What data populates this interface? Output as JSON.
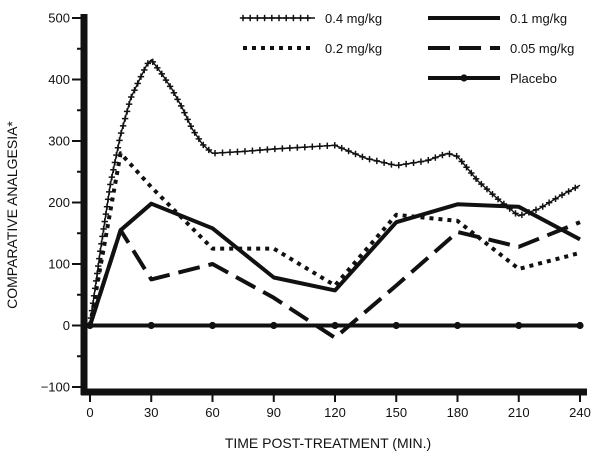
{
  "chart_data": {
    "type": "line",
    "title": "",
    "xlabel": "TIME POST-TREATMENT (MIN.)",
    "ylabel": "COMPARATIVE ANALGESIA*",
    "xlim": [
      0,
      240
    ],
    "ylim": [
      -100,
      500
    ],
    "xticks": [
      0,
      30,
      60,
      90,
      120,
      150,
      180,
      210,
      240
    ],
    "yticks": [
      -100,
      0,
      100,
      200,
      300,
      400,
      500
    ],
    "grid": false,
    "legend_position": "top-right",
    "series": [
      {
        "name": "0.4 mg/kg",
        "style": "line-with-plus-markers",
        "color": "#111111",
        "points": [
          [
            0,
            0
          ],
          [
            5,
            120
          ],
          [
            10,
            230
          ],
          [
            15,
            310
          ],
          [
            20,
            370
          ],
          [
            25,
            405
          ],
          [
            28,
            425
          ],
          [
            30,
            432
          ],
          [
            35,
            410
          ],
          [
            40,
            385
          ],
          [
            45,
            355
          ],
          [
            50,
            320
          ],
          [
            55,
            295
          ],
          [
            60,
            280
          ],
          [
            75,
            283
          ],
          [
            90,
            287
          ],
          [
            105,
            290
          ],
          [
            120,
            293
          ],
          [
            135,
            272
          ],
          [
            150,
            260
          ],
          [
            165,
            268
          ],
          [
            175,
            280
          ],
          [
            180,
            275
          ],
          [
            190,
            235
          ],
          [
            200,
            205
          ],
          [
            210,
            178
          ],
          [
            220,
            190
          ],
          [
            230,
            210
          ],
          [
            240,
            228
          ]
        ]
      },
      {
        "name": "0.2 mg/kg",
        "style": "dotted",
        "color": "#111111",
        "points": [
          [
            0,
            0
          ],
          [
            15,
            280
          ],
          [
            30,
            225
          ],
          [
            60,
            125
          ],
          [
            90,
            125
          ],
          [
            120,
            65
          ],
          [
            150,
            180
          ],
          [
            180,
            170
          ],
          [
            210,
            92
          ],
          [
            240,
            118
          ]
        ]
      },
      {
        "name": "0.1 mg/kg",
        "style": "solid",
        "color": "#111111",
        "points": [
          [
            0,
            0
          ],
          [
            15,
            155
          ],
          [
            30,
            198
          ],
          [
            60,
            158
          ],
          [
            90,
            78
          ],
          [
            120,
            57
          ],
          [
            150,
            168
          ],
          [
            180,
            197
          ],
          [
            210,
            193
          ],
          [
            240,
            140
          ]
        ]
      },
      {
        "name": "0.05 mg/kg",
        "style": "long-dash",
        "color": "#111111",
        "points": [
          [
            0,
            0
          ],
          [
            15,
            155
          ],
          [
            30,
            75
          ],
          [
            60,
            100
          ],
          [
            90,
            45
          ],
          [
            120,
            -20
          ],
          [
            150,
            65
          ],
          [
            180,
            152
          ],
          [
            210,
            128
          ],
          [
            240,
            168
          ]
        ]
      },
      {
        "name": "Placebo",
        "style": "solid-with-dot-markers",
        "color": "#111111",
        "points": [
          [
            0,
            0
          ],
          [
            30,
            0
          ],
          [
            60,
            0
          ],
          [
            90,
            0
          ],
          [
            120,
            0
          ],
          [
            150,
            0
          ],
          [
            180,
            0
          ],
          [
            210,
            0
          ],
          [
            240,
            0
          ]
        ]
      }
    ]
  }
}
